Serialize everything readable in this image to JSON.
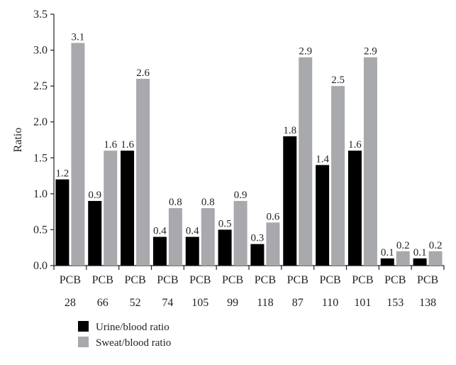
{
  "chart_data": {
    "type": "bar",
    "categories": [
      [
        "PCB",
        "28"
      ],
      [
        "PCB",
        "66"
      ],
      [
        "PCB",
        "52"
      ],
      [
        "PCB",
        "74"
      ],
      [
        "PCB",
        "105"
      ],
      [
        "PCB",
        "99"
      ],
      [
        "PCB",
        "118"
      ],
      [
        "PCB",
        "87"
      ],
      [
        "PCB",
        "110"
      ],
      [
        "PCB",
        "101"
      ],
      [
        "PCB",
        "153"
      ],
      [
        "PCB",
        "138"
      ]
    ],
    "series": [
      {
        "name": "Urine/blood ratio",
        "color": "#000000",
        "values": [
          1.2,
          0.9,
          1.6,
          0.4,
          0.4,
          0.5,
          0.3,
          1.8,
          1.4,
          1.6,
          0.1,
          0.1
        ],
        "labels": [
          "1.2",
          "0.9",
          "1.6",
          "0.4",
          "0.4",
          "0.5",
          "0.3",
          "1.8",
          "1.4",
          "1.6",
          "0.1",
          "0.1"
        ]
      },
      {
        "name": "Sweat/blood ratio",
        "color": "#a7a9ac",
        "values": [
          3.1,
          1.6,
          2.6,
          0.8,
          0.8,
          0.9,
          0.6,
          2.9,
          2.5,
          2.9,
          0.2,
          0.2
        ],
        "labels": [
          "3.1",
          "1.6",
          "2.6",
          "0.8",
          "0.8",
          "0.9",
          "0.6",
          "2.9",
          "2.5",
          "2.9",
          "0.2",
          "0.2"
        ]
      }
    ],
    "title": "",
    "xlabel": "",
    "ylabel": "Ratio",
    "ylim": [
      0,
      3.5
    ],
    "yticks": [
      "0.0",
      "0.5",
      "1.0",
      "1.5",
      "2.0",
      "2.5",
      "3.0",
      "3.5"
    ],
    "grid": false,
    "legend_position": "bottom-left"
  }
}
